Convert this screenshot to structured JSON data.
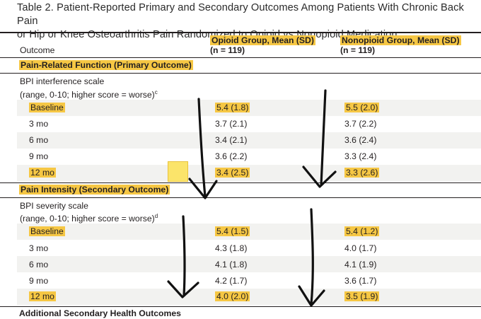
{
  "title": {
    "line1": "Table 2. Patient-Reported Primary and Secondary Outcomes Among Patients With Chronic Back Pain",
    "line2": "or Hip or Knee Osteoarthritis Pain Randomized to Opioid vs Nonopioid Medication"
  },
  "header": {
    "outcome": "Outcome",
    "opioid_title": "Opioid Group, Mean (SD)",
    "opioid_n": "(n = 119)",
    "nonopioid_title": "Nonopioid Group, Mean (SD)",
    "nonopioid_n": "(n = 119)"
  },
  "section1": {
    "heading": "Pain-Related Function (Primary Outcome)",
    "scale_line1": "BPI interference scale",
    "scale_line2": "(range, 0-10; higher score = worse)",
    "scale_sup": "c",
    "rows": [
      {
        "label": "Baseline",
        "opioid": "5.4 (1.8)",
        "nonopioid": "5.5 (2.0)"
      },
      {
        "label": "3 mo",
        "opioid": "3.7 (2.1)",
        "nonopioid": "3.7 (2.2)"
      },
      {
        "label": "6 mo",
        "opioid": "3.4 (2.1)",
        "nonopioid": "3.6 (2.4)"
      },
      {
        "label": "9 mo",
        "opioid": "3.6 (2.2)",
        "nonopioid": "3.3 (2.4)"
      },
      {
        "label": "12 mo",
        "opioid": "3.4 (2.5)",
        "nonopioid": "3.3 (2.6)"
      }
    ]
  },
  "section2": {
    "heading": "Pain Intensity (Secondary Outcome)",
    "scale_line1": "BPI severity scale",
    "scale_line2": "(range, 0-10; higher score = worse)",
    "scale_sup": "d",
    "rows": [
      {
        "label": "Baseline",
        "opioid": "5.4 (1.5)",
        "nonopioid": "5.4 (1.2)"
      },
      {
        "label": "3 mo",
        "opioid": "4.3 (1.8)",
        "nonopioid": "4.0 (1.7)"
      },
      {
        "label": "6 mo",
        "opioid": "4.1 (1.8)",
        "nonopioid": "4.1 (1.9)"
      },
      {
        "label": "9 mo",
        "opioid": "4.2 (1.7)",
        "nonopioid": "3.6 (1.7)"
      },
      {
        "label": "12 mo",
        "opioid": "4.0 (2.0)",
        "nonopioid": "3.5 (1.9)"
      }
    ]
  },
  "section3": {
    "heading": "Additional Secondary Health Outcomes"
  },
  "colors": {
    "highlight": "#f6c744",
    "sticky_note": "#fbe46a",
    "row_band": "#f2f2f0",
    "ink": "#231f20"
  }
}
